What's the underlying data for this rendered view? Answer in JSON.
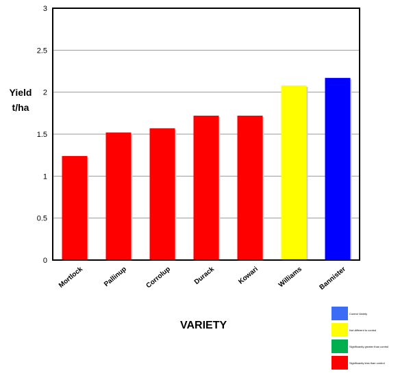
{
  "chart_data": {
    "type": "bar",
    "categories": [
      "Mortlock",
      "Pallinup",
      "Corrolup",
      "Durack",
      "Kowari",
      "Williams",
      "Bannister"
    ],
    "values": [
      1.24,
      1.52,
      1.57,
      1.72,
      1.72,
      2.08,
      2.17
    ],
    "bar_colors": [
      "#ff0000",
      "#ff0000",
      "#ff0000",
      "#ff0000",
      "#ff0000",
      "#ffff00",
      "#0000ff"
    ],
    "ylim": [
      0,
      3
    ],
    "yticks": [
      "0",
      "0.5",
      "1",
      "1.5",
      "2",
      "2.5",
      "3"
    ],
    "ylabel_line1": "Yield",
    "ylabel_line2": "t/ha",
    "xlabel": "VARIETY",
    "grid": true,
    "legend_position": "bottom-right"
  },
  "legend": [
    {
      "label": "Control Variety",
      "color": "#3b6cf5"
    },
    {
      "label": "Not different to control",
      "color": "#ffff00"
    },
    {
      "label": "Significantly greater than control",
      "color": "#00b050"
    },
    {
      "label": "Significantly less than control",
      "color": "#ff0000"
    }
  ]
}
